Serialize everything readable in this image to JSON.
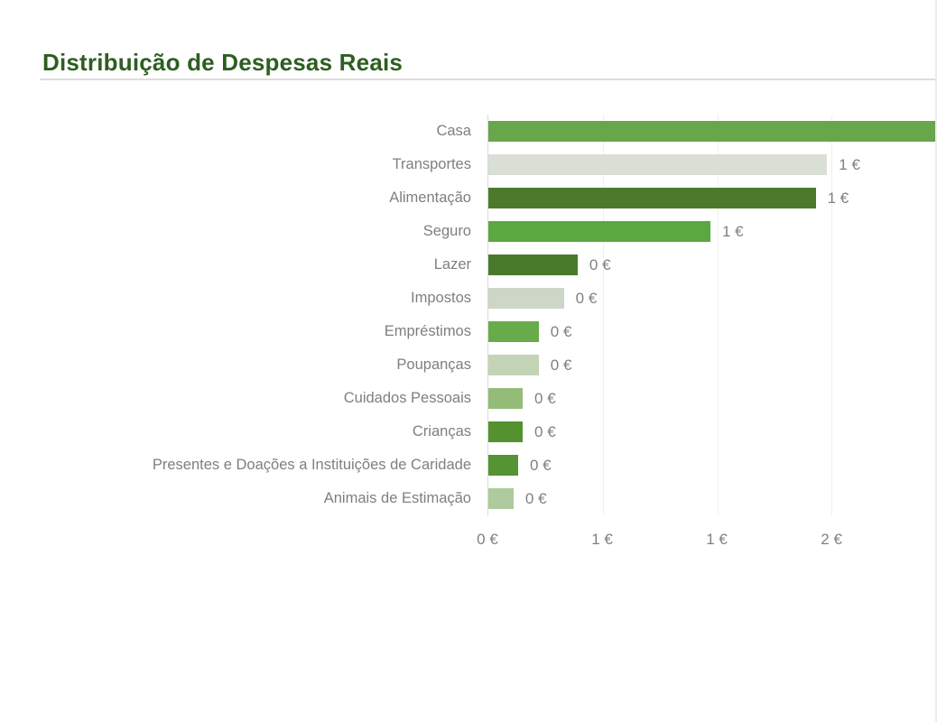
{
  "page": {
    "title": "Distribuição de Despesas Reais"
  },
  "chart_data": {
    "type": "bar",
    "orientation": "horizontal",
    "title": "Distribuição de Despesas Reais",
    "currency": "EUR",
    "legend": "none",
    "x_axis": {
      "min": 0,
      "max": 1.96,
      "number_format": "0 €",
      "gridlines": true,
      "ticks": [
        {
          "value": 0,
          "label": "0 €"
        },
        {
          "value": 0.5,
          "label": "1 €"
        },
        {
          "value": 1,
          "label": "1 €"
        },
        {
          "value": 1.5,
          "label": "2 €"
        }
      ]
    },
    "rows": [
      {
        "label": "Casa",
        "value_eur": 2.0,
        "value_label": "",
        "clipped": true,
        "color": "#67a64a"
      },
      {
        "label": "Transportes",
        "value_eur": 1.48,
        "value_label": "1 €",
        "clipped": false,
        "color": "#dadfd6"
      },
      {
        "label": "Alimentação",
        "value_eur": 1.43,
        "value_label": "1 €",
        "clipped": false,
        "color": "#4b7a2d"
      },
      {
        "label": "Seguro",
        "value_eur": 0.97,
        "value_label": "1 €",
        "clipped": false,
        "color": "#5ba740"
      },
      {
        "label": "Lazer",
        "value_eur": 0.39,
        "value_label": "0 €",
        "clipped": false,
        "color": "#497a2c"
      },
      {
        "label": "Impostos",
        "value_eur": 0.33,
        "value_label": "0 €",
        "clipped": false,
        "color": "#cdd6c7"
      },
      {
        "label": "Empréstimos",
        "value_eur": 0.22,
        "value_label": "0 €",
        "clipped": false,
        "color": "#68ab4a"
      },
      {
        "label": "Poupanças",
        "value_eur": 0.22,
        "value_label": "0 €",
        "clipped": false,
        "color": "#c2d4b5"
      },
      {
        "label": "Cuidados Pessoais",
        "value_eur": 0.15,
        "value_label": "0 €",
        "clipped": false,
        "color": "#92bc77"
      },
      {
        "label": "Crianças",
        "value_eur": 0.15,
        "value_label": "0 €",
        "clipped": false,
        "color": "#54912f"
      },
      {
        "label": "Presentes e Doações a Instituições de Caridade",
        "value_eur": 0.13,
        "value_label": "0 €",
        "clipped": false,
        "color": "#559334"
      },
      {
        "label": "Animais de Estimação",
        "value_eur": 0.11,
        "value_label": "0 €",
        "clipped": false,
        "color": "#adcb9d"
      }
    ],
    "colors": {
      "title": "#2d5e20",
      "category_labels": "#7f7f7f",
      "value_labels": "#808080",
      "axis_line": "#d9d9d9",
      "gridline": "#efefef",
      "background": "#ffffff"
    }
  }
}
